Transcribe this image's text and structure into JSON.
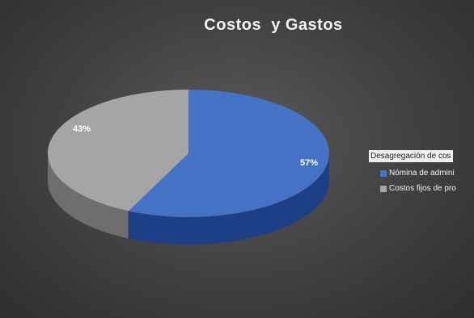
{
  "chart_data": {
    "type": "pie",
    "title": "Costos  y Gastos",
    "legend_title": "Desagregación de cos",
    "legend_position": "right",
    "series": [
      {
        "name": "Nómina de admini",
        "value": 57,
        "label": "57%",
        "color": "#4472c4",
        "side_color": "#1c3f86"
      },
      {
        "name": "Costos fijos de pro",
        "value": 43,
        "label": "43%",
        "color": "#a5a5a5",
        "side_color": "#6e6e6e"
      }
    ]
  }
}
